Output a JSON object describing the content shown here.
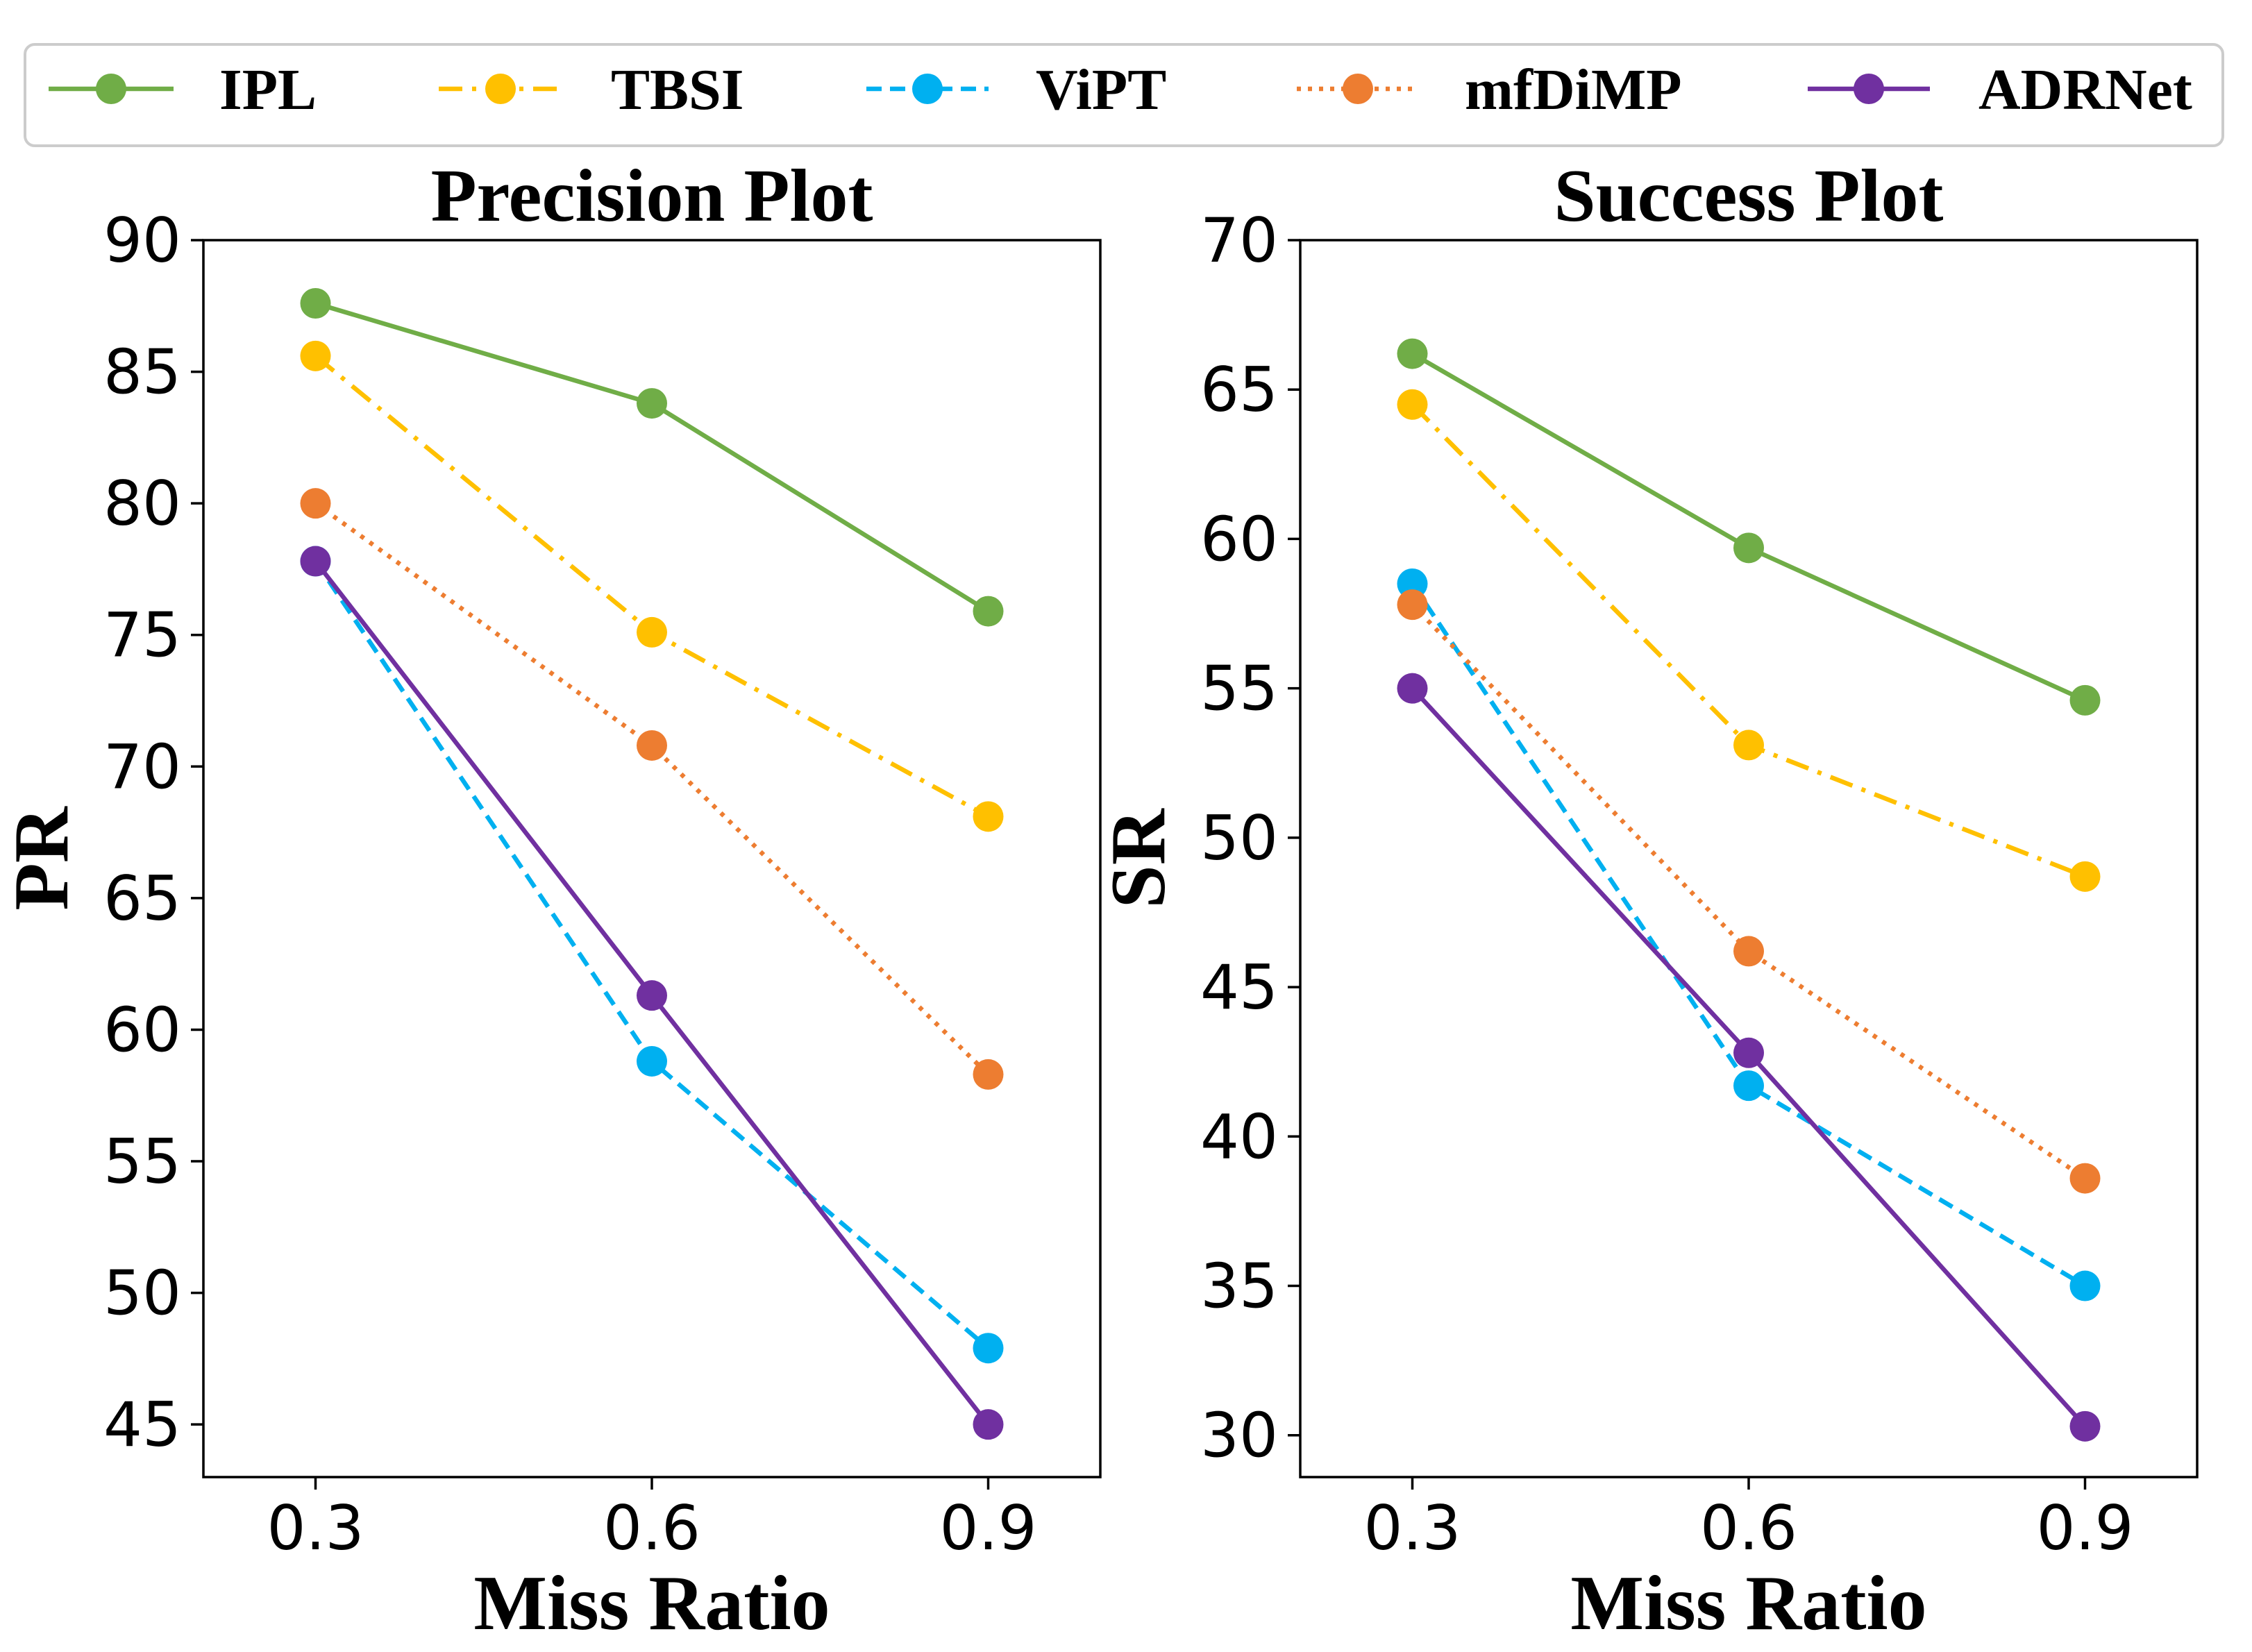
{
  "legend": [
    {
      "name": "IPL",
      "color": "#70ad47",
      "dash": "solid"
    },
    {
      "name": "TBSI",
      "color": "#ffc000",
      "dash": "dashdot"
    },
    {
      "name": "ViPT",
      "color": "#00b0f0",
      "dash": "dashed"
    },
    {
      "name": "mfDiMP",
      "color": "#ed7d31",
      "dash": "dotted"
    },
    {
      "name": "ADRNet",
      "color": "#7030a0",
      "dash": "solid"
    }
  ],
  "chart_data": [
    {
      "type": "line",
      "title": "Precision Plot",
      "xlabel": "Miss Ratio",
      "ylabel": "PR",
      "x": [
        0.3,
        0.6,
        0.9
      ],
      "x_tick_labels": [
        "0.3",
        "0.6",
        "0.9"
      ],
      "xlim": [
        0.2,
        1.0
      ],
      "ylim": [
        43.0,
        90.0
      ],
      "y_ticks": [
        45,
        50,
        55,
        60,
        65,
        70,
        75,
        80,
        85,
        90
      ],
      "series": [
        {
          "name": "IPL",
          "values": [
            87.6,
            83.8,
            75.9
          ]
        },
        {
          "name": "TBSI",
          "values": [
            85.6,
            75.1,
            68.1
          ]
        },
        {
          "name": "ViPT",
          "values": [
            77.8,
            58.8,
            47.9
          ]
        },
        {
          "name": "mfDiMP",
          "values": [
            80.0,
            70.8,
            58.3
          ]
        },
        {
          "name": "ADRNet",
          "values": [
            77.8,
            61.3,
            45.0
          ]
        }
      ]
    },
    {
      "type": "line",
      "title": "Success Plot",
      "xlabel": "Miss Ratio",
      "ylabel": "SR",
      "x": [
        0.3,
        0.6,
        0.9
      ],
      "x_tick_labels": [
        "0.3",
        "0.6",
        "0.9"
      ],
      "xlim": [
        0.2,
        1.0
      ],
      "ylim": [
        28.6,
        70.0
      ],
      "y_ticks": [
        30,
        35,
        40,
        45,
        50,
        55,
        60,
        65,
        70
      ],
      "series": [
        {
          "name": "IPL",
          "values": [
            66.2,
            59.7,
            54.6
          ]
        },
        {
          "name": "TBSI",
          "values": [
            64.5,
            53.1,
            48.7
          ]
        },
        {
          "name": "ViPT",
          "values": [
            58.5,
            41.7,
            35.0
          ]
        },
        {
          "name": "mfDiMP",
          "values": [
            57.8,
            46.2,
            38.6
          ]
        },
        {
          "name": "ADRNet",
          "values": [
            55.0,
            42.8,
            30.3
          ]
        }
      ]
    }
  ]
}
